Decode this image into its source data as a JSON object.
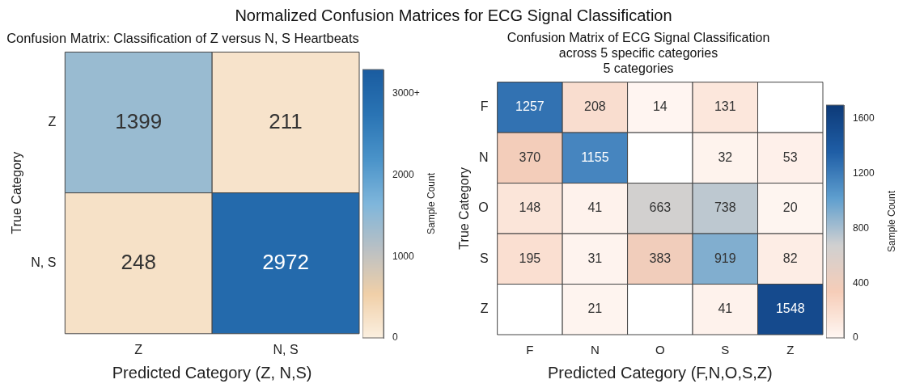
{
  "chart_data": [
    {
      "type": "heatmap",
      "title": "Normalized Confusion Matrices for ECG Signal Classification",
      "subtitle": "Confusion Matrix: Classification of Z versus N, S Heartbeats",
      "xlabel": "Predicted Category (Z, N,S)",
      "ylabel": "True Category",
      "clabel": "Sample Count",
      "categories": [
        "Z",
        "N, S"
      ],
      "y_categories": [
        "Z",
        "N, S"
      ],
      "cells": [
        [
          1399,
          211
        ],
        [
          248,
          2972
        ]
      ],
      "clim": [
        0,
        3300
      ],
      "cticks": [
        0,
        1000,
        2000,
        {
          "value": 3000,
          "label": "3000+"
        }
      ],
      "data_labels": true
    },
    {
      "type": "heatmap",
      "title": "Confusion Matrix of ECG Signal Classification",
      "subtitle": "across 5 specific categories\n5 categories",
      "xlabel": "Predicted Category (F,N,O,S,Z)",
      "ylabel": "True Category",
      "clabel": "Sample Count",
      "categories": [
        "F",
        "N",
        "O",
        "S",
        "Z"
      ],
      "y_categories": [
        "F",
        "N",
        "O",
        "S",
        "Z"
      ],
      "cells": [
        [
          1257,
          208,
          14,
          131,
          null
        ],
        [
          370,
          1155,
          null,
          32,
          53
        ],
        [
          148,
          41,
          663,
          738,
          20
        ],
        [
          195,
          31,
          383,
          919,
          82
        ],
        [
          null,
          21,
          null,
          41,
          1548
        ]
      ],
      "clim": [
        0,
        1700
      ],
      "cticks": [
        0,
        400,
        800,
        1200,
        1600
      ],
      "data_labels": true
    }
  ]
}
